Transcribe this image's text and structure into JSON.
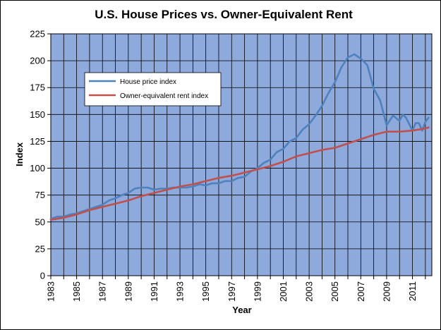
{
  "chart_data": {
    "type": "line",
    "title": "U.S. House Prices vs. Owner-Equivalent Rent",
    "xlabel": "Year",
    "ylabel": "Index",
    "xlim": [
      1983,
      2012.5
    ],
    "ylim": [
      0,
      225
    ],
    "y_ticks": [
      0,
      25,
      50,
      75,
      100,
      125,
      150,
      175,
      200,
      225
    ],
    "x_ticks": [
      1983,
      1985,
      1987,
      1989,
      1991,
      1993,
      1995,
      1997,
      1999,
      2001,
      2003,
      2005,
      2007,
      2009,
      2011
    ],
    "grid": true,
    "legend_position": "upper-left",
    "plot_background": "#8EA9DB",
    "series": [
      {
        "name": "House price index",
        "color": "#4F81BD",
        "x": [
          1983,
          1983.5,
          1984,
          1984.5,
          1985,
          1985.5,
          1986,
          1986.5,
          1987,
          1987.5,
          1988,
          1988.5,
          1989,
          1989.5,
          1990,
          1990.5,
          1991,
          1991.5,
          1992,
          1992.5,
          1993,
          1993.5,
          1994,
          1994.5,
          1995,
          1995.5,
          1996,
          1996.5,
          1997,
          1997.5,
          1998,
          1998.5,
          1999,
          1999.5,
          2000,
          2000.5,
          2001,
          2001.5,
          2002,
          2002.5,
          2003,
          2003.5,
          2004,
          2004.5,
          2005,
          2005.5,
          2006,
          2006.5,
          2007,
          2007.5,
          2008,
          2008.5,
          2009,
          2009.5,
          2010,
          2010.25,
          2010.5,
          2010.75,
          2011,
          2011.25,
          2011.5,
          2011.75,
          2012,
          2012.25
        ],
        "values": [
          53,
          55,
          55,
          57,
          58,
          60,
          62,
          64,
          66,
          70,
          72,
          75,
          77,
          81,
          82,
          82,
          80,
          81,
          81,
          82,
          82,
          82,
          83,
          85,
          84,
          86,
          86,
          88,
          88,
          91,
          92,
          97,
          100,
          105,
          108,
          115,
          118,
          125,
          128,
          136,
          141,
          149,
          158,
          170,
          180,
          194,
          203,
          206,
          202,
          196,
          174,
          163,
          140,
          149,
          144,
          150,
          147,
          141,
          135,
          142,
          142,
          135,
          143,
          147
        ]
      },
      {
        "name": "Owner-equivalent rent index",
        "color": "#C0504D",
        "x": [
          1983,
          1984,
          1985,
          1986,
          1987,
          1988,
          1989,
          1990,
          1991,
          1992,
          1993,
          1994,
          1995,
          1996,
          1997,
          1998,
          1999,
          2000,
          2001,
          2002,
          2003,
          2004,
          2005,
          2006,
          2007,
          2008,
          2009,
          2010,
          2011,
          2012,
          2012.25
        ],
        "values": [
          52,
          54,
          57,
          61,
          64,
          67,
          70,
          74,
          77,
          80,
          83,
          85,
          88,
          91,
          93,
          96,
          99,
          102,
          106,
          111,
          114,
          117,
          119,
          123,
          127,
          131,
          134,
          134,
          135,
          137,
          138
        ]
      }
    ]
  }
}
